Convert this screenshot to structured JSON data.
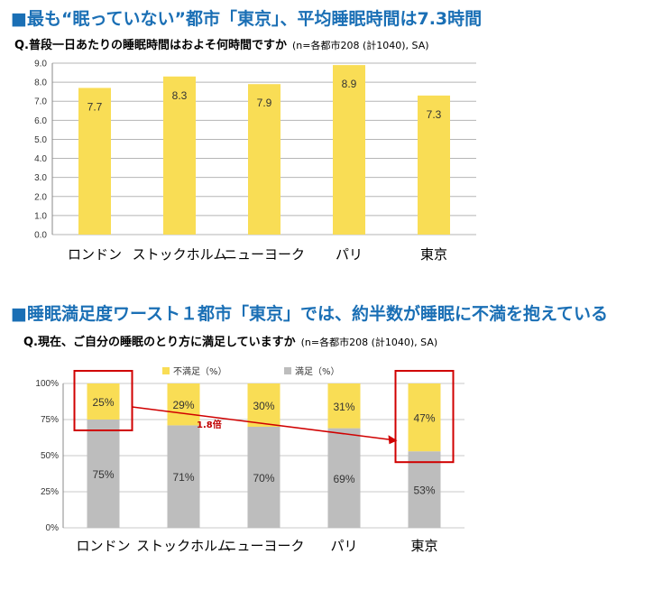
{
  "section1": {
    "heading": "■最も“眠っていない”都市「東京」、平均睡眠時間は7.3時間",
    "question": "Q.普段一日あたりの睡眠時間はおよそ何時間ですか",
    "note": "(n=各都市208 (計1040), SA)"
  },
  "section2": {
    "heading": "■睡眠満足度ワースト１都市「東京」では、約半数が睡眠に不満を抱えている",
    "question": "Q.現在、ご自分の睡眠のとり方に満足していますか",
    "note": "(n=各都市208 (計1040), SA)",
    "annotation": "1.8倍"
  },
  "chart_data": [
    {
      "type": "bar",
      "categories": [
        "ロンドン",
        "ストックホルム",
        "ニューヨーク",
        "パリ",
        "東京"
      ],
      "values": [
        7.7,
        8.3,
        7.9,
        8.9,
        7.3
      ],
      "value_labels": [
        "7.7",
        "8.3",
        "7.9",
        "8.9",
        "7.3"
      ],
      "y_ticks": [
        "0.0",
        "1.0",
        "2.0",
        "3.0",
        "4.0",
        "5.0",
        "6.0",
        "7.0",
        "8.0",
        "9.0"
      ],
      "ylim": [
        0,
        9
      ],
      "grid": true,
      "colors": {
        "bar": "#f9dd55",
        "grid": "#b5b5b5"
      }
    },
    {
      "type": "bar",
      "stacked": true,
      "categories": [
        "ロンドン",
        "ストックホルム",
        "ニューヨーク",
        "パリ",
        "東京"
      ],
      "series": [
        {
          "name": "満足（%）",
          "values": [
            75,
            71,
            70,
            69,
            53
          ],
          "labels": [
            "75%",
            "71%",
            "70%",
            "69%",
            "53%"
          ],
          "color": "#bdbdbd"
        },
        {
          "name": "不満足（%）",
          "values": [
            25,
            29,
            30,
            31,
            47
          ],
          "labels": [
            "25%",
            "29%",
            "30%",
            "31%",
            "47%"
          ],
          "color": "#f9dd55"
        }
      ],
      "y_ticks": [
        "0%",
        "25%",
        "50%",
        "75%",
        "100%"
      ],
      "ylim": [
        0,
        100
      ],
      "grid": true,
      "legend": "top",
      "highlight_color": "#d00000"
    }
  ]
}
